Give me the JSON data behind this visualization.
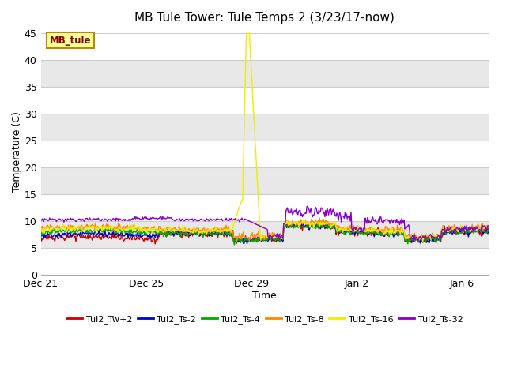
{
  "title": "MB Tule Tower: Tule Temps 2 (3/23/17-now)",
  "xlabel": "Time",
  "ylabel": "Temperature (C)",
  "ylim": [
    0,
    46
  ],
  "yticks": [
    0,
    5,
    10,
    15,
    20,
    25,
    30,
    35,
    40,
    45
  ],
  "fig_bg_color": "#ffffff",
  "plot_bg_color": "#ffffff",
  "grid_color": "#dddddd",
  "series": [
    {
      "label": "Tul2_Tw+2",
      "color": "#cc0000"
    },
    {
      "label": "Tul2_Ts-2",
      "color": "#0000cc"
    },
    {
      "label": "Tul2_Ts-4",
      "color": "#00aa00"
    },
    {
      "label": "Tul2_Ts-8",
      "color": "#ff8800"
    },
    {
      "label": "Tul2_Ts-16",
      "color": "#eeee00"
    },
    {
      "label": "Tul2_Ts-32",
      "color": "#8800cc"
    }
  ],
  "watermark_text": "MB_tule",
  "watermark_bg": "#ffff99",
  "watermark_border": "#bb8800",
  "watermark_text_color": "#880000",
  "x_tick_labels": [
    "Dec 21",
    "Dec 25",
    "Dec 29",
    "Jan 2",
    "Jan 6"
  ],
  "x_tick_positions": [
    0,
    4,
    8,
    12,
    16
  ],
  "xlim": [
    0,
    17
  ],
  "band_colors": [
    "#ffffff",
    "#e8e8e8"
  ]
}
